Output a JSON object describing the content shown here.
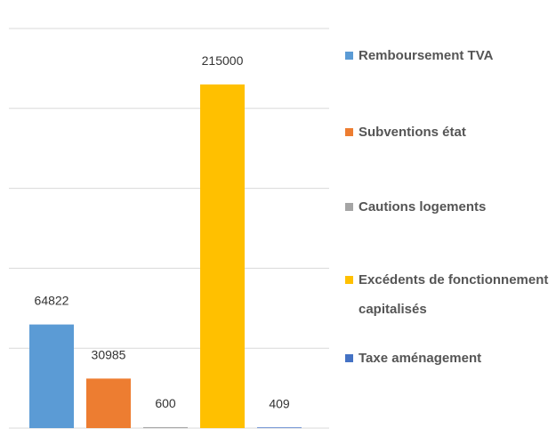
{
  "chart_data": {
    "type": "bar",
    "categories": [
      null
    ],
    "series": [
      {
        "name": "Remboursement TVA",
        "color": "#5b9bd5",
        "values": [
          64822
        ]
      },
      {
        "name": "Subventions état",
        "color": "#ed7d31",
        "values": [
          30985
        ]
      },
      {
        "name": "Cautions logements",
        "color": "#a5a5a5",
        "values": [
          600
        ]
      },
      {
        "name": "Excédents de fonctionnement capitalisés",
        "color": "#ffc000",
        "values": [
          215000
        ]
      },
      {
        "name": "Taxe aménagement",
        "color": "#4472c4",
        "values": [
          409
        ]
      }
    ],
    "ylim": [
      0,
      250000
    ],
    "yticks": [
      0,
      50000,
      100000,
      150000,
      200000,
      250000
    ],
    "grid": true,
    "legend": "right"
  }
}
